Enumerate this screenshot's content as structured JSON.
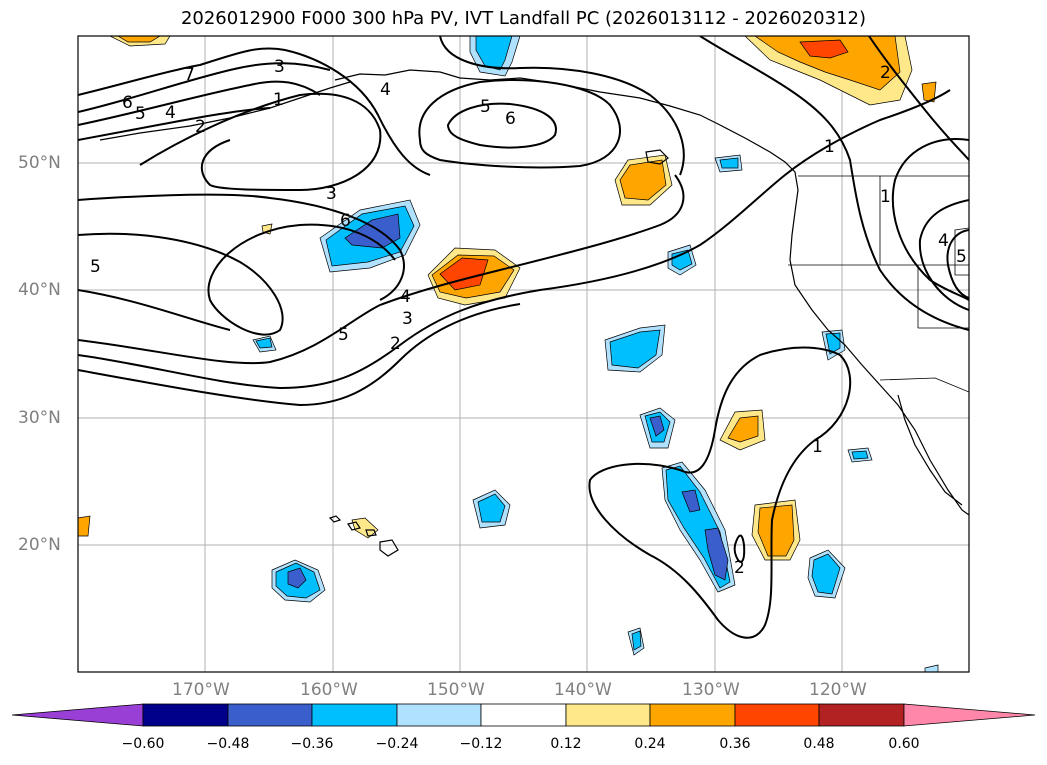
{
  "title": "2026012900 F000 300 hPa PV, IVT Landfall PC (2026013112 - 2026020312)",
  "map": {
    "lat_labels": [
      "50°N",
      "40°N",
      "30°N",
      "20°N"
    ],
    "lon_labels": [
      "170°W",
      "160°W",
      "150°W",
      "140°W",
      "130°W",
      "120°W"
    ],
    "contour_labels": [
      "7",
      "3",
      "1",
      "4",
      "6",
      "5",
      "4",
      "2",
      "5",
      "6",
      "1",
      "2",
      "3",
      "6",
      "5",
      "5",
      "4",
      "3",
      "2",
      "1",
      "2",
      "1",
      "4",
      "5"
    ]
  },
  "colorbar": {
    "ticks": [
      "−0.60",
      "−0.48",
      "−0.36",
      "−0.24",
      "−0.12",
      "0.12",
      "0.24",
      "0.36",
      "0.48",
      "0.60"
    ],
    "colors": [
      "#9a3fd6",
      "#00008b",
      "#3a5fcd",
      "#00bfff",
      "#b0e2ff",
      "#ffffff",
      "#ffe88a",
      "#ffa500",
      "#ff4500",
      "#b22222",
      "#ff88aa"
    ]
  }
}
